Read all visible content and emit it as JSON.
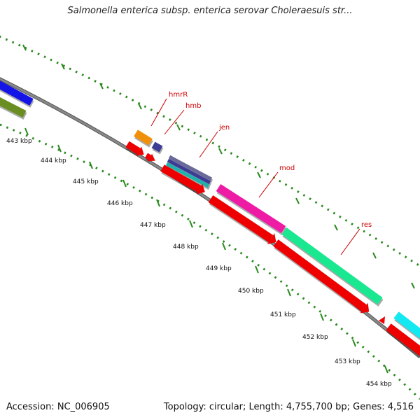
{
  "title": "Salmonella enterica subsp. enterica serovar Choleraesuis str...",
  "footer": {
    "accession": "Accession: NC_006905",
    "summary": "Topology: circular; Length: 4,755,700 bp; Genes: 4,516"
  },
  "colors": {
    "backbone": "#888888",
    "tick": "#2a8a1e",
    "gene_label": "#cc0000",
    "kbp_label": "#111111"
  },
  "axis": {
    "kbp_labels": [
      "443 kbp",
      "444 kbp",
      "445 kbp",
      "446 kbp",
      "447 kbp",
      "448 kbp",
      "449 kbp",
      "450 kbp",
      "451 kbp",
      "452 kbp",
      "453 kbp",
      "454 kbp"
    ]
  },
  "gene_labels": [
    {
      "name": "hmrR",
      "label": "hmrR"
    },
    {
      "name": "hmb",
      "label": "hmb"
    },
    {
      "name": "jen",
      "label": "jen"
    },
    {
      "name": "mod",
      "label": "mod"
    },
    {
      "name": "res",
      "label": "res"
    }
  ],
  "feature_colors": {
    "blue": "#1414e6",
    "olive": "#6b8e23",
    "orange": "#f0900a",
    "indigo": "#3c3c96",
    "teal": "#20b2aa",
    "grey_blue": "#6a6a9a",
    "magenta": "#ee1ca4",
    "spring": "#19e890",
    "cyan": "#14e8f0",
    "red": "#ee0000"
  }
}
